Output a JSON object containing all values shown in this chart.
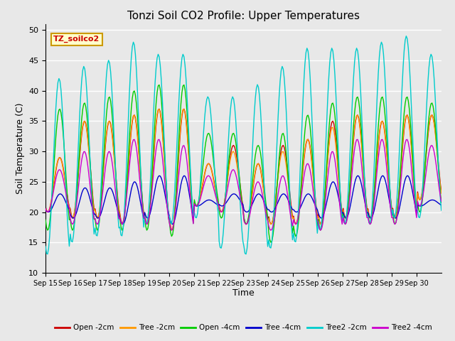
{
  "title": "Tonzi Soil CO2 Profile: Upper Temperatures",
  "xlabel": "Time",
  "ylabel": "Soil Temperature (C)",
  "ylim": [
    10,
    51
  ],
  "yticks": [
    10,
    15,
    20,
    25,
    30,
    35,
    40,
    45,
    50
  ],
  "background_color": "#e8e8e8",
  "plot_bg_color": "#e8e8e8",
  "grid_color": "#ffffff",
  "series": [
    {
      "label": "Open -2cm",
      "color": "#cc0000"
    },
    {
      "label": "Tree -2cm",
      "color": "#ff9900"
    },
    {
      "label": "Open -4cm",
      "color": "#00cc00"
    },
    {
      "label": "Tree -4cm",
      "color": "#0000cc"
    },
    {
      "label": "Tree2 -2cm",
      "color": "#00cccc"
    },
    {
      "label": "Tree2 -4cm",
      "color": "#cc00cc"
    }
  ],
  "xtick_labels": [
    "Sep 15",
    "Sep 16",
    "Sep 17",
    "Sep 18",
    "Sep 19",
    "Sep 20",
    "Sep 21",
    "Sep 22",
    "Sep 23",
    "Sep 24",
    "Sep 25",
    "Sep 26",
    "Sep 27",
    "Sep 28",
    "Sep 29",
    "Sep 30"
  ],
  "annotation_text": "TZ_soilco2",
  "annotation_color": "#cc0000",
  "annotation_bg": "#ffffcc",
  "annotation_border": "#cc9900",
  "open2_max": [
    29,
    35,
    35,
    36,
    37,
    37,
    28,
    31,
    28,
    31,
    32,
    35,
    36,
    35,
    36,
    36
  ],
  "open2_min": [
    20,
    19,
    19,
    18,
    18,
    17,
    21,
    20,
    18,
    18,
    18,
    18,
    19,
    19,
    19,
    22
  ],
  "tree2_max": [
    29,
    35,
    35,
    36,
    37,
    37,
    28,
    30,
    28,
    30,
    32,
    34,
    36,
    35,
    36,
    36
  ],
  "tree2_min": [
    20,
    19,
    19,
    18,
    18,
    17,
    21,
    20,
    18,
    18,
    18,
    18,
    19,
    19,
    19,
    22
  ],
  "open4_max": [
    37,
    38,
    39,
    40,
    41,
    41,
    33,
    33,
    31,
    33,
    36,
    38,
    39,
    39,
    39,
    38
  ],
  "open4_min": [
    17,
    17,
    17,
    17,
    17,
    16,
    21,
    19,
    18,
    15,
    16,
    17,
    18,
    18,
    18,
    20
  ],
  "tree4_max": [
    23,
    24,
    24,
    25,
    26,
    26,
    22,
    23,
    23,
    23,
    23,
    25,
    26,
    26,
    26,
    22
  ],
  "tree4_min": [
    20,
    19,
    19,
    18,
    19,
    18,
    21,
    21,
    20,
    20,
    20,
    19,
    19,
    19,
    19,
    21
  ],
  "tree22_max": [
    42,
    44,
    45,
    48,
    46,
    46,
    39,
    39,
    41,
    44,
    47,
    47,
    47,
    48,
    49,
    46
  ],
  "tree22_min": [
    13,
    15,
    16,
    16,
    18,
    18,
    19,
    14,
    13,
    14,
    15,
    17,
    18,
    18,
    19,
    19
  ],
  "tree24_max": [
    27,
    30,
    30,
    32,
    32,
    31,
    26,
    27,
    25,
    26,
    28,
    30,
    32,
    32,
    32,
    31
  ],
  "tree24_min": [
    20,
    18,
    18,
    18,
    18,
    17,
    21,
    20,
    18,
    17,
    18,
    17,
    18,
    18,
    18,
    21
  ]
}
